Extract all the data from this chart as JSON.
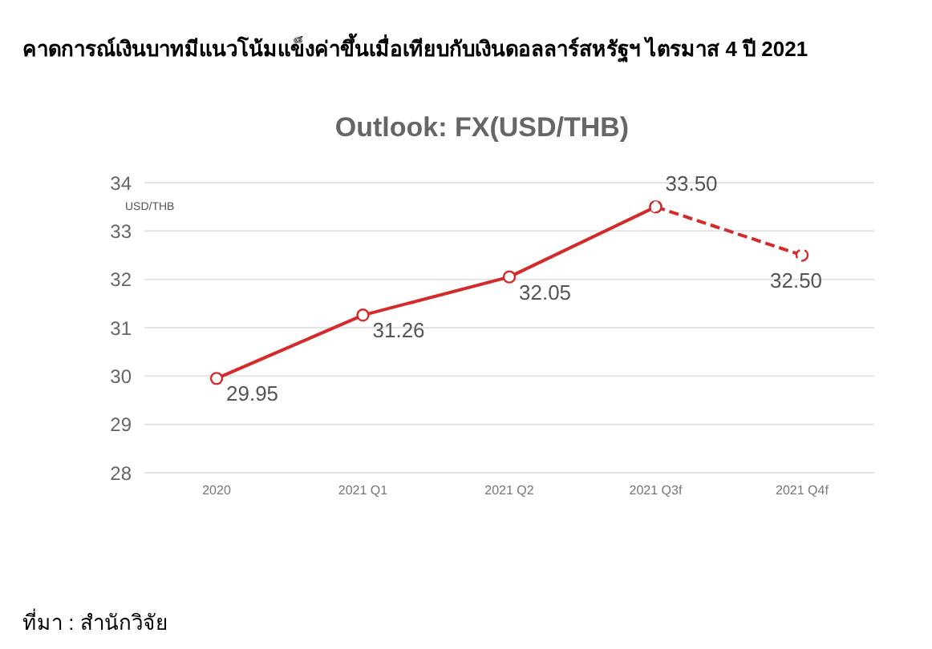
{
  "chart_data": {
    "type": "line",
    "title": "คาดการณ์เงินบาทมีแนวโน้มแข็งค่าขึ้นเมื่อเทียบกับเงินดอลลาร์สหรัฐฯ ไตรมาส 4 ปี 2021",
    "subtitle": "Outlook: FX(USD/THB)",
    "ylabel": "USD/THB",
    "categories": [
      "2020",
      "2021 Q1",
      "2021 Q2",
      "2021 Q3f",
      "2021 Q4f"
    ],
    "series": [
      {
        "color": "#d42a2a",
        "line_style": "solid",
        "values": [
          29.95,
          31.26,
          32.05,
          33.5,
          null
        ],
        "value_labels": [
          "29.95",
          "31.26",
          "32.05",
          "33.50",
          null
        ]
      },
      {
        "color": "#d42a2a",
        "line_style": "dashed",
        "values": [
          null,
          null,
          null,
          33.5,
          32.5
        ],
        "value_labels": [
          null,
          null,
          null,
          null,
          "32.50"
        ]
      }
    ],
    "ylim": [
      28,
      34
    ],
    "yticks": [
      28,
      29,
      30,
      31,
      32,
      33,
      34
    ],
    "grid": "y",
    "marker": "circle",
    "legend": false,
    "annotations": [
      "ที่มา : สำนักวิจัย"
    ]
  }
}
